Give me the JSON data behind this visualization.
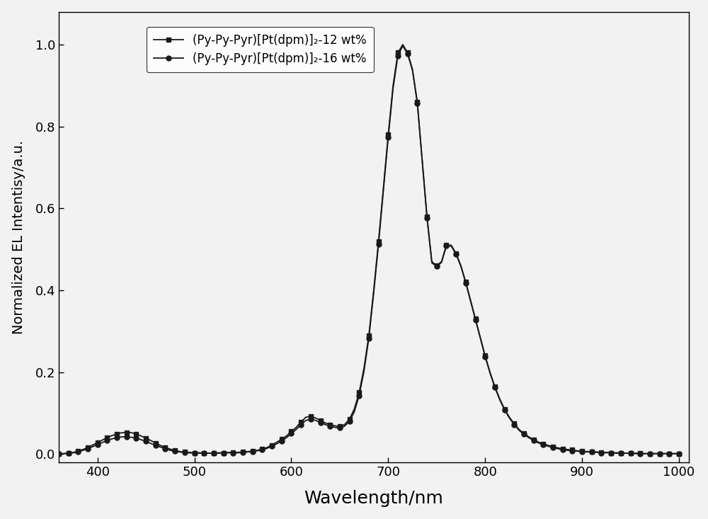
{
  "xlabel": "Wavelength/nm",
  "ylabel": "Normalized EL Intentisy/a.u.",
  "xlim": [
    360,
    1010
  ],
  "ylim": [
    -0.02,
    1.08
  ],
  "xticks": [
    400,
    500,
    600,
    700,
    800,
    900,
    1000
  ],
  "yticks": [
    0.0,
    0.2,
    0.4,
    0.6,
    0.8,
    1.0
  ],
  "legend1": "(Py-Py-Pyr)[Pt(dpm)]₂-12 wt%",
  "legend2": "(Py-Py-Pyr)[Pt(dpm)]₂-16 wt%",
  "line_color": "#1a1a1a",
  "bg_color": "#f2f2f2",
  "wavelengths": [
    360,
    365,
    370,
    375,
    380,
    385,
    390,
    395,
    400,
    405,
    410,
    415,
    420,
    425,
    430,
    435,
    440,
    445,
    450,
    455,
    460,
    465,
    470,
    475,
    480,
    485,
    490,
    495,
    500,
    505,
    510,
    515,
    520,
    525,
    530,
    535,
    540,
    545,
    550,
    555,
    560,
    565,
    570,
    575,
    580,
    585,
    590,
    595,
    600,
    605,
    610,
    615,
    620,
    625,
    630,
    635,
    640,
    645,
    650,
    655,
    660,
    665,
    670,
    675,
    680,
    685,
    690,
    695,
    700,
    705,
    710,
    715,
    720,
    725,
    730,
    735,
    740,
    745,
    750,
    755,
    760,
    765,
    770,
    775,
    780,
    785,
    790,
    795,
    800,
    805,
    810,
    815,
    820,
    825,
    830,
    835,
    840,
    845,
    850,
    855,
    860,
    865,
    870,
    875,
    880,
    885,
    890,
    895,
    900,
    905,
    910,
    915,
    920,
    925,
    930,
    935,
    940,
    945,
    950,
    955,
    960,
    965,
    970,
    975,
    980,
    985,
    990,
    995,
    1000
  ],
  "intensity_12": [
    0.0,
    0.001,
    0.002,
    0.004,
    0.007,
    0.011,
    0.016,
    0.022,
    0.028,
    0.034,
    0.04,
    0.045,
    0.049,
    0.052,
    0.053,
    0.052,
    0.049,
    0.044,
    0.039,
    0.033,
    0.027,
    0.021,
    0.016,
    0.012,
    0.009,
    0.006,
    0.005,
    0.004,
    0.003,
    0.003,
    0.003,
    0.002,
    0.002,
    0.003,
    0.003,
    0.004,
    0.004,
    0.004,
    0.005,
    0.006,
    0.007,
    0.009,
    0.012,
    0.016,
    0.022,
    0.029,
    0.036,
    0.044,
    0.055,
    0.065,
    0.078,
    0.09,
    0.092,
    0.088,
    0.082,
    0.076,
    0.072,
    0.069,
    0.067,
    0.072,
    0.085,
    0.11,
    0.15,
    0.21,
    0.29,
    0.4,
    0.52,
    0.65,
    0.78,
    0.9,
    0.98,
    1.0,
    0.98,
    0.94,
    0.86,
    0.72,
    0.58,
    0.47,
    0.46,
    0.47,
    0.51,
    0.51,
    0.49,
    0.46,
    0.42,
    0.375,
    0.33,
    0.285,
    0.24,
    0.2,
    0.165,
    0.135,
    0.11,
    0.09,
    0.074,
    0.06,
    0.05,
    0.042,
    0.035,
    0.029,
    0.025,
    0.021,
    0.018,
    0.015,
    0.013,
    0.011,
    0.01,
    0.008,
    0.007,
    0.006,
    0.006,
    0.005,
    0.004,
    0.004,
    0.003,
    0.003,
    0.003,
    0.002,
    0.002,
    0.002,
    0.002,
    0.001,
    0.001,
    0.001,
    0.001,
    0.001,
    0.001,
    0.001,
    0.001
  ],
  "intensity_16": [
    0.0,
    0.001,
    0.002,
    0.003,
    0.005,
    0.009,
    0.013,
    0.018,
    0.023,
    0.028,
    0.033,
    0.037,
    0.04,
    0.042,
    0.042,
    0.041,
    0.039,
    0.035,
    0.031,
    0.026,
    0.021,
    0.017,
    0.013,
    0.009,
    0.007,
    0.005,
    0.004,
    0.003,
    0.002,
    0.002,
    0.002,
    0.002,
    0.002,
    0.002,
    0.003,
    0.003,
    0.003,
    0.003,
    0.004,
    0.005,
    0.006,
    0.008,
    0.01,
    0.014,
    0.019,
    0.025,
    0.032,
    0.04,
    0.05,
    0.06,
    0.072,
    0.082,
    0.085,
    0.082,
    0.077,
    0.072,
    0.068,
    0.065,
    0.064,
    0.068,
    0.08,
    0.103,
    0.143,
    0.202,
    0.283,
    0.393,
    0.513,
    0.643,
    0.773,
    0.893,
    0.973,
    0.997,
    0.977,
    0.937,
    0.857,
    0.717,
    0.577,
    0.467,
    0.458,
    0.468,
    0.508,
    0.508,
    0.488,
    0.458,
    0.418,
    0.373,
    0.328,
    0.283,
    0.238,
    0.198,
    0.163,
    0.133,
    0.108,
    0.088,
    0.072,
    0.058,
    0.048,
    0.04,
    0.033,
    0.027,
    0.023,
    0.019,
    0.016,
    0.013,
    0.011,
    0.009,
    0.008,
    0.007,
    0.006,
    0.005,
    0.005,
    0.004,
    0.003,
    0.003,
    0.003,
    0.002,
    0.002,
    0.002,
    0.002,
    0.001,
    0.001,
    0.001,
    0.001,
    0.001,
    0.001,
    0.001,
    0.001,
    0.001,
    0.001
  ],
  "marker_size_sq": 5,
  "marker_size_circ": 5,
  "linewidth": 1.3,
  "marker_interval_12": 2,
  "marker_interval_16": 2
}
